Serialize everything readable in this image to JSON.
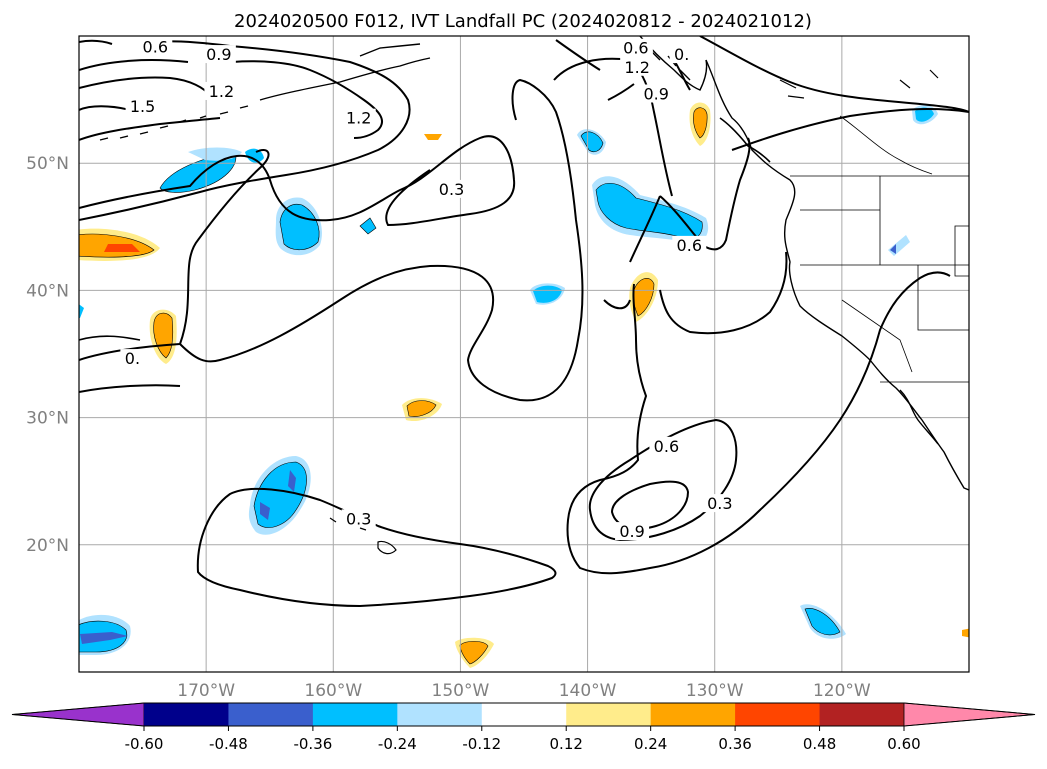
{
  "title": "2024020500 F012, IVT Landfall PC (2024020812 - 2024021012)",
  "map": {
    "lon_range": [
      180,
      110
    ],
    "lat_range": [
      10,
      60
    ],
    "grid": true,
    "lon_labels": [
      "170°W",
      "160°W",
      "150°W",
      "140°W",
      "130°W",
      "120°W"
    ],
    "lon_values": [
      170,
      160,
      150,
      140,
      130,
      120
    ],
    "lat_labels": [
      "50°N",
      "40°N",
      "30°N",
      "20°N"
    ],
    "lat_values": [
      50,
      40,
      30,
      20
    ],
    "axis_label_color": "#808080"
  },
  "contours": {
    "color": "#000000",
    "labels": [
      {
        "text": "0.6",
        "lon": 174.0,
        "lat": 59.1
      },
      {
        "text": "0.9",
        "lon": 169.0,
        "lat": 58.5
      },
      {
        "text": "1.2",
        "lon": 168.8,
        "lat": 55.6
      },
      {
        "text": "1.5",
        "lon": 175.0,
        "lat": 54.4
      },
      {
        "text": "1.2",
        "lon": 158.0,
        "lat": 53.5
      },
      {
        "text": "0.3",
        "lon": 150.7,
        "lat": 47.9
      },
      {
        "text": "0.6",
        "lon": 136.2,
        "lat": 59.0
      },
      {
        "text": "0.",
        "lon": 132.6,
        "lat": 58.5
      },
      {
        "text": "1.2",
        "lon": 136.1,
        "lat": 57.5
      },
      {
        "text": "0.9",
        "lon": 134.6,
        "lat": 55.4
      },
      {
        "text": "0.6",
        "lon": 132.0,
        "lat": 43.5
      },
      {
        "text": "0.",
        "lon": 175.8,
        "lat": 34.6
      },
      {
        "text": "0.3",
        "lon": 158.0,
        "lat": 22.0
      },
      {
        "text": "0.6",
        "lon": 133.8,
        "lat": 27.7
      },
      {
        "text": "0.9",
        "lon": 136.5,
        "lat": 21.0
      },
      {
        "text": "0.3",
        "lon": 129.6,
        "lat": 23.2
      }
    ]
  },
  "colorbar": {
    "ticks": [
      "-0.60",
      "-0.48",
      "-0.36",
      "-0.24",
      "-0.12",
      "0.12",
      "0.24",
      "0.36",
      "0.48",
      "0.60"
    ],
    "under_color": "#9932cc",
    "over_color": "#ff88aa",
    "colors": [
      "#00008b",
      "#3a5fcd",
      "#00bfff",
      "#b0e2ff",
      "#ffffff",
      "#ffec8b",
      "#ffa500",
      "#ff4500",
      "#b22222"
    ]
  }
}
